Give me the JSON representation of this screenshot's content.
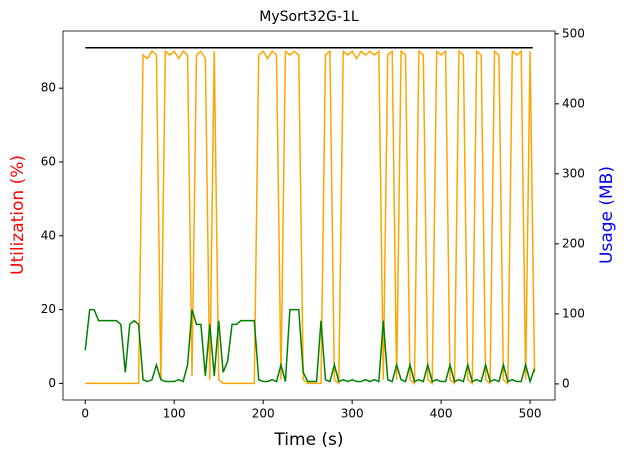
{
  "chart_data": {
    "type": "line",
    "title": "MySort32G-1L",
    "xlabel": "Time (s)",
    "ylabel": "Utilization (%)",
    "y2label": "Usage (MB)",
    "ylabel_color": "red",
    "y2label_color": "blue",
    "x": [
      0,
      5,
      10,
      15,
      20,
      25,
      30,
      35,
      40,
      45,
      50,
      55,
      60,
      65,
      70,
      75,
      80,
      85,
      90,
      95,
      100,
      105,
      110,
      115,
      120,
      125,
      130,
      135,
      140,
      145,
      150,
      155,
      160,
      165,
      170,
      175,
      180,
      185,
      190,
      195,
      200,
      205,
      210,
      215,
      220,
      225,
      230,
      235,
      240,
      245,
      250,
      255,
      260,
      265,
      270,
      275,
      280,
      285,
      290,
      295,
      300,
      305,
      310,
      315,
      320,
      325,
      330,
      335,
      340,
      345,
      350,
      355,
      360,
      365,
      370,
      375,
      380,
      385,
      390,
      395,
      400,
      405,
      410,
      415,
      420,
      425,
      430,
      435,
      440,
      445,
      450,
      455,
      460,
      465,
      470,
      475,
      480,
      485,
      490,
      495,
      500,
      505
    ],
    "series": [
      {
        "color": "orange",
        "values": [
          0,
          0,
          0,
          0,
          0,
          0,
          0,
          0,
          0,
          0,
          0,
          0,
          0,
          89,
          88,
          90,
          89,
          1,
          90,
          89,
          90,
          88,
          90,
          89,
          2,
          89,
          90,
          88,
          1,
          90,
          1,
          0,
          0,
          0,
          0,
          0,
          0,
          0,
          0,
          89,
          90,
          88,
          90,
          89,
          1,
          90,
          89,
          90,
          89,
          1,
          0,
          0,
          0,
          0,
          89,
          90,
          1,
          0,
          90,
          89,
          90,
          88,
          90,
          89,
          90,
          89,
          90,
          1,
          89,
          90,
          1,
          90,
          89,
          1,
          0,
          90,
          89,
          1,
          0,
          90,
          89,
          90,
          1,
          0,
          90,
          89,
          1,
          0,
          90,
          89,
          1,
          0,
          90,
          89,
          1,
          0,
          90,
          89,
          90,
          1,
          90,
          3
        ]
      },
      {
        "color": "green",
        "values": [
          9,
          20,
          20,
          17,
          17,
          17,
          17,
          17,
          16,
          3,
          16,
          17,
          16,
          1,
          0.5,
          1,
          5,
          1,
          0.5,
          0.5,
          0.5,
          1,
          0.5,
          5,
          20,
          16,
          16,
          2,
          16,
          2,
          17,
          3,
          6,
          16,
          16,
          17,
          17,
          17,
          17,
          1,
          0.5,
          0.5,
          1,
          0.5,
          5,
          0.5,
          20,
          20,
          20,
          3,
          0.5,
          0.5,
          0.5,
          17,
          1,
          0.5,
          5,
          0.5,
          1,
          0.5,
          1,
          0.5,
          0.5,
          1,
          0.5,
          1,
          0.5,
          17,
          1,
          0.5,
          5,
          1,
          0.5,
          5,
          0.5,
          1,
          0.5,
          5,
          0.5,
          1,
          0.5,
          0.5,
          5,
          0.5,
          1,
          0.5,
          5,
          0.5,
          1,
          0.5,
          5,
          0.5,
          1,
          0.5,
          5,
          0.5,
          1,
          0.5,
          0.5,
          5,
          0.5,
          4
        ]
      },
      {
        "color": "black",
        "axis": "y2",
        "x": [
          0,
          503
        ],
        "values": [
          480,
          480
        ]
      }
    ],
    "xlim": [
      -25,
      528
    ],
    "xticks": [
      0,
      100,
      200,
      300,
      400,
      500
    ],
    "ylim": [
      -4.5,
      95.5
    ],
    "yticks": [
      0,
      20,
      40,
      60,
      80
    ],
    "y2lim": [
      -23,
      504
    ],
    "y2ticks": [
      0,
      100,
      200,
      300,
      400,
      500
    ]
  }
}
